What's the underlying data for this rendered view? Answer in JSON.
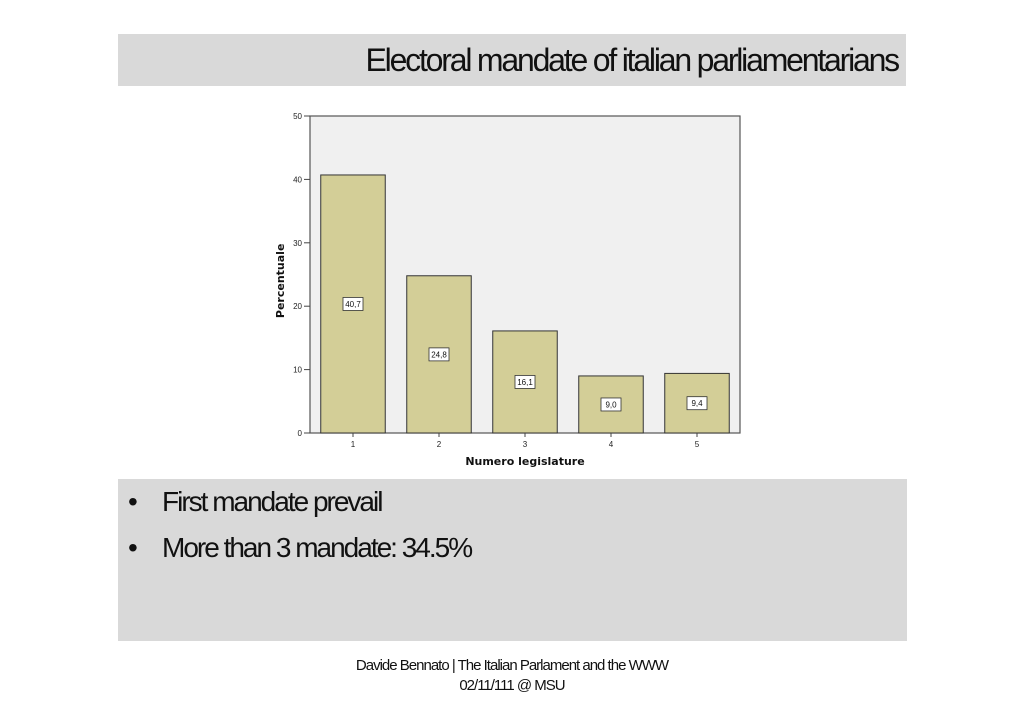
{
  "slide": {
    "title": "Electoral mandate of italian parliamentarians",
    "bullets": [
      {
        "marker": "•",
        "text": "First mandate prevail"
      },
      {
        "marker": "•",
        "text": "More than 3 mandate: 34.5%"
      }
    ],
    "footer_line1": "Davide Bennato | The Italian Parlament and the WWW",
    "footer_line2": "02/11/111 @ MSU"
  },
  "colors": {
    "band": "#d9d9d9",
    "plot_background": "#f0f0f0",
    "bar_fill": "#d3ce97",
    "bar_stroke": "#333333"
  },
  "chart_data": {
    "type": "bar",
    "xlabel": "Numero legislature",
    "ylabel": "Percentuale",
    "categories": [
      "1",
      "2",
      "3",
      "4",
      "5"
    ],
    "values": [
      40.7,
      24.8,
      16.1,
      9.0,
      9.4
    ],
    "data_labels": [
      "40,7",
      "24,8",
      "16,1",
      "9,0",
      "9,4"
    ],
    "yticks": [
      0,
      10,
      20,
      30,
      40,
      50
    ],
    "ylim": [
      0,
      50
    ],
    "grid": false,
    "legend": "none"
  }
}
